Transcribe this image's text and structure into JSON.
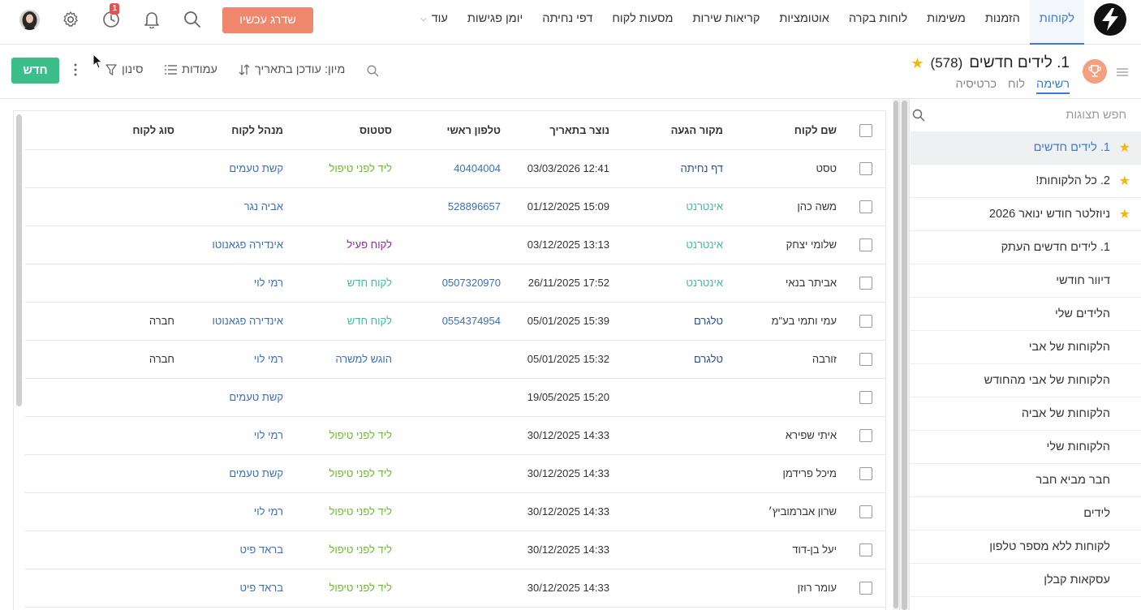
{
  "colors": {
    "accent": "#3a7bd5",
    "upgrade": "#f0866b",
    "new_button": "#3bbf8a",
    "star": "#f2b807",
    "badge": "#e05252"
  },
  "nav": {
    "items": [
      {
        "label": "לקוחות",
        "active": true
      },
      {
        "label": "הזמנות"
      },
      {
        "label": "משימות"
      },
      {
        "label": "לוחות בקרה"
      },
      {
        "label": "אוטומציות"
      },
      {
        "label": "קריאות שירות"
      },
      {
        "label": "מסעות לקוח"
      },
      {
        "label": "דפי נחיתה"
      },
      {
        "label": "יומן פגישות"
      },
      {
        "label": "עוד"
      }
    ],
    "upgrade_label": "שדרג עכשיו",
    "history_badge": "1"
  },
  "header": {
    "title": "1. לידים חדשים",
    "count": "(578)",
    "tabs": [
      "רשימה",
      "לוח",
      "כרטיסיה"
    ],
    "sort_label": "מיון: עודכן בתאריך",
    "columns_label": "עמודות",
    "filter_label": "סינון",
    "new_label": "חדש"
  },
  "sidebar": {
    "search_placeholder": "חפש תצוגות",
    "items": [
      {
        "label": "1. לידים חדשים",
        "starred": true,
        "selected": true
      },
      {
        "label": "2. כל הלקוחות!",
        "starred": true
      },
      {
        "label": "ניוזלטר חודש ינואר 2026",
        "starred": true
      },
      {
        "label": "1. לידים חדשים העתק"
      },
      {
        "label": "דיוור חודשי"
      },
      {
        "label": "הלידים שלי"
      },
      {
        "label": "הלקוחות של אבי"
      },
      {
        "label": "הלקוחות של אבי מהחודש"
      },
      {
        "label": "הלקוחות של אביה"
      },
      {
        "label": "הלקוחות שלי"
      },
      {
        "label": "חבר מביא חבר"
      },
      {
        "label": "לידים"
      },
      {
        "label": "לקוחות ללא מספר טלפון"
      },
      {
        "label": "עסקאות קבלן"
      }
    ]
  },
  "table": {
    "headers": [
      "שם לקוח",
      "מקור הגעה",
      "נוצר בתאריך",
      "טלפון ראשי",
      "סטטוס",
      "מנהל לקוח",
      "סוג לקוח"
    ],
    "rows": [
      {
        "name": "טסט",
        "source": "דף נחיתה",
        "source_color": "navy",
        "created": "12:41 03/03/2026",
        "phone": "40404004",
        "status": "ליד לפני טיפול",
        "status_color": "green",
        "manager": "קשת טעמים",
        "type": ""
      },
      {
        "name": "משה כהן",
        "source": "אינטרנט",
        "source_color": "teal",
        "created": "15:09 01/12/2025",
        "phone": "528896657",
        "status": "",
        "status_color": "",
        "manager": "אביה נגר",
        "type": ""
      },
      {
        "name": "שלומי יצחק",
        "source": "אינטרנט",
        "source_color": "teal",
        "created": "13:13 03/12/2025",
        "phone": "",
        "status": "לקוח פעיל",
        "status_color": "purple",
        "manager": "אינדירה פגאנוטו",
        "type": ""
      },
      {
        "name": "אביתר בנאי",
        "source": "אינטרנט",
        "source_color": "teal",
        "created": "17:52 26/11/2025",
        "phone": "0507320970",
        "status": "לקוח חדש",
        "status_color": "teal",
        "manager": "רמי לוי",
        "type": ""
      },
      {
        "name": "עמי ותמי בע\"מ",
        "source": "טלגרם",
        "source_color": "navy",
        "created": "15:39 05/01/2025",
        "phone": "0554374954",
        "status": "לקוח חדש",
        "status_color": "teal",
        "manager": "אינדירה פגאנוטו",
        "type": "חברה"
      },
      {
        "name": "זורבה",
        "source": "טלגרם",
        "source_color": "navy",
        "created": "15:32 05/01/2025",
        "phone": "",
        "status": "הוגש למשרה",
        "status_color": "blue",
        "manager": "רמי לוי",
        "type": "חברה"
      },
      {
        "name": "",
        "source": "",
        "source_color": "",
        "created": "15:20 19/05/2025",
        "phone": "",
        "status": "",
        "status_color": "",
        "manager": "קשת טעמים",
        "type": ""
      },
      {
        "name": "איתי שפירא",
        "source": "",
        "source_color": "",
        "created": "14:33 30/12/2025",
        "phone": "",
        "status": "ליד לפני טיפול",
        "status_color": "green",
        "manager": "רמי לוי",
        "type": ""
      },
      {
        "name": "מיכל פרידמן",
        "source": "",
        "source_color": "",
        "created": "14:33 30/12/2025",
        "phone": "",
        "status": "ליד לפני טיפול",
        "status_color": "green",
        "manager": "קשת טעמים",
        "type": ""
      },
      {
        "name": "שרון אברמוביץ׳",
        "source": "",
        "source_color": "",
        "created": "14:33 30/12/2025",
        "phone": "",
        "status": "ליד לפני טיפול",
        "status_color": "green",
        "manager": "רמי לוי",
        "type": ""
      },
      {
        "name": "יעל בן-דוד",
        "source": "",
        "source_color": "",
        "created": "14:33 30/12/2025",
        "phone": "",
        "status": "ליד לפני טיפול",
        "status_color": "green",
        "manager": "בראד פיט",
        "type": ""
      },
      {
        "name": "עומר רוזן",
        "source": "",
        "source_color": "",
        "created": "14:33 30/12/2025",
        "phone": "",
        "status": "ליד לפני טיפול",
        "status_color": "green",
        "manager": "בראד פיט",
        "type": ""
      }
    ]
  }
}
